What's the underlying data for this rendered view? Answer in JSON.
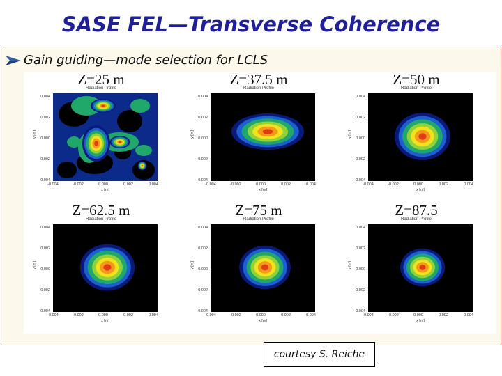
{
  "slide": {
    "title": "SASE FEL—Transverse Coherence",
    "bullet_text": "Gain guiding—mode selection for LCLS",
    "credit": "courtesy S. Reiche"
  },
  "colors": {
    "title": "#1f1f9a",
    "box_border": "#a23a2a",
    "box_fill": "#fdf8ec",
    "bullet_arrow": "#2f5fa8",
    "plot_background": "#000000"
  },
  "icons": {
    "bullet": "arrow-bullet-icon"
  },
  "figure": {
    "panels": [
      {
        "z_label": "Z=25 m",
        "profile_label": "Radiation Profile",
        "pattern": "speckle"
      },
      {
        "z_label": "Z=37.5 m",
        "profile_label": "Radiation Profile",
        "pattern": "elongated"
      },
      {
        "z_label": "Z=50 m",
        "profile_label": "Radiation Profile",
        "pattern": "round"
      },
      {
        "z_label": "Z=62.5 m",
        "profile_label": "Radiation Profile",
        "pattern": "round"
      },
      {
        "z_label": "Z=75 m",
        "profile_label": "Radiation Profile",
        "pattern": "round"
      },
      {
        "z_label": "Z=87.5",
        "profile_label": "Radiation Profile",
        "pattern": "round"
      }
    ],
    "y_ticks": [
      "0.004",
      "0.002",
      "0.000",
      "-0.002",
      "-0.004"
    ],
    "x_ticks": [
      "-0.004",
      "-0.002",
      "0.000",
      "0.002",
      "0.004"
    ],
    "x_axis_label": "x [m]",
    "y_axis_label": "y [m]"
  }
}
